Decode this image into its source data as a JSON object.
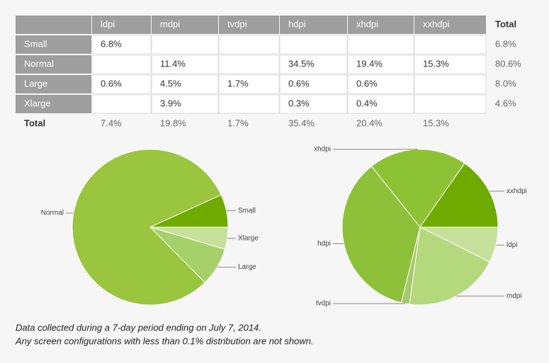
{
  "table": {
    "columns": [
      "ldpi",
      "mdpi",
      "tvdpi",
      "hdpi",
      "xhdpi",
      "xxhdpi",
      "Total"
    ],
    "rows": [
      [
        "Small",
        "6.8%",
        null,
        null,
        null,
        null,
        null,
        "6.8%"
      ],
      [
        "Normal",
        null,
        "11.4%",
        null,
        "34.5%",
        "19.4%",
        "15.3%",
        "80.6%"
      ],
      [
        "Large",
        "0.6%",
        "4.5%",
        "1.7%",
        "0.6%",
        "0.6%",
        null,
        "8.0%"
      ],
      [
        "Xlarge",
        null,
        "3.9%",
        null,
        "0.3%",
        "0.4%",
        null,
        "4.6%"
      ],
      [
        "Total",
        "7.4%",
        "19.8%",
        "1.7%",
        "35.4%",
        "20.4%",
        "15.3%",
        null
      ]
    ]
  },
  "chart_data": [
    {
      "type": "pie",
      "categories": [
        "Xlarge",
        "Large",
        "Normal",
        "Small"
      ],
      "values": [
        4.6,
        8.0,
        80.6,
        6.8
      ],
      "colors": [
        "#c6e19c",
        "#a6d06a",
        "#99c53f",
        "#6faa00"
      ]
    },
    {
      "type": "pie",
      "categories": [
        "ldpi",
        "mdpi",
        "tvdpi",
        "hdpi",
        "xhdpi",
        "xxhdpi"
      ],
      "values": [
        7.4,
        19.8,
        1.7,
        35.4,
        20.4,
        15.3
      ],
      "colors": [
        "#c6e19c",
        "#b4d87c",
        "#a3ca6c",
        "#8fc03a",
        "#8ec235",
        "#6faa00"
      ]
    }
  ],
  "notes": [
    "Data collected during a 7-day period ending on July 7, 2014.",
    "Any screen configurations with less than 0.1% distribution are not shown."
  ]
}
